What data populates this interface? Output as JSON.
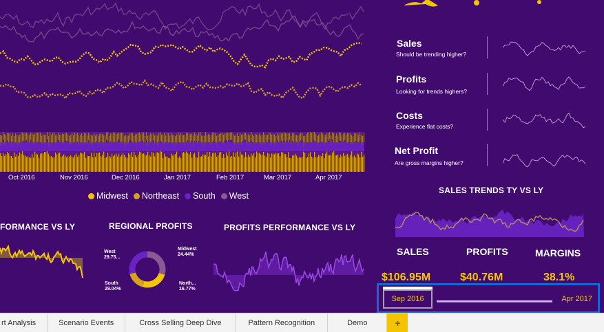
{
  "kpis": [
    {
      "title": "Sales",
      "subtitle": "Should be trending higher?"
    },
    {
      "title": "Profits",
      "subtitle": "Looking for trends highers?"
    },
    {
      "title": "Costs",
      "subtitle": "Experience flat costs?"
    },
    {
      "title": "Net Profit",
      "subtitle": "Are gross margins higher?"
    }
  ],
  "sections": {
    "sales_trends": "SALES TRENDS TY VS LY",
    "performance_vs_ly": "FORMANCE VS LY",
    "regional_profits": "REGIONAL PROFITS",
    "profits_performance": "PROFITS PERFORMANCE VS LY"
  },
  "summary": {
    "sales_label": "SALES",
    "sales_value": "$106.95M",
    "profits_label": "PROFITS",
    "profits_value": "$40.76M",
    "margins_label": "MARGINS",
    "margins_value": "38.1%"
  },
  "axis_months": [
    "Oct 2016",
    "Nov 2016",
    "Dec 2016",
    "Jan 2017",
    "Feb 2017",
    "Mar 2017",
    "Apr 2017"
  ],
  "legend": [
    {
      "name": "Midwest",
      "color": "#f5c400"
    },
    {
      "name": "Northeast",
      "color": "#d7a21a"
    },
    {
      "name": "South",
      "color": "#6a22c4"
    },
    {
      "name": "West",
      "color": "#8c5a92"
    }
  ],
  "regional_profits": [
    {
      "region": "West",
      "value": "29.75...",
      "share": 29.75,
      "color": "#8c5a92"
    },
    {
      "region": "Midwest",
      "value": "24.44%",
      "share": 24.44,
      "color": "#f5c400"
    },
    {
      "region": "North...",
      "value": "16.77%",
      "share": 16.77,
      "color": "#d7a21a"
    },
    {
      "region": "South",
      "value": "29.04%",
      "share": 29.04,
      "color": "#6a22c4"
    }
  ],
  "slicer": {
    "start": "Sep 2016",
    "end": "Apr 2017"
  },
  "tabs": [
    "rt Analysis",
    "Scenario Events",
    "Cross Selling Deep Dive",
    "Pattern Recognition",
    "Demo"
  ],
  "tab_add": "+",
  "colors": {
    "background": "#400a6e",
    "accent": "#f5c400",
    "slicer_border": "#1568d4"
  }
}
